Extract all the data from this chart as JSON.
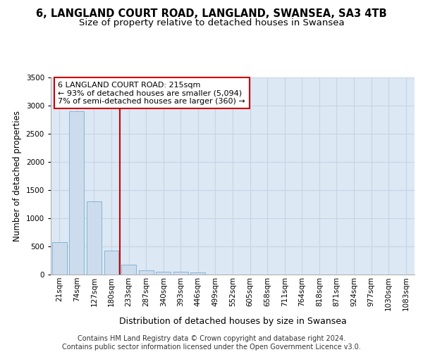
{
  "title1": "6, LANGLAND COURT ROAD, LANGLAND, SWANSEA, SA3 4TB",
  "title2": "Size of property relative to detached houses in Swansea",
  "xlabel": "Distribution of detached houses by size in Swansea",
  "ylabel": "Number of detached properties",
  "categories": [
    "21sqm",
    "74sqm",
    "127sqm",
    "180sqm",
    "233sqm",
    "287sqm",
    "340sqm",
    "393sqm",
    "446sqm",
    "499sqm",
    "552sqm",
    "605sqm",
    "658sqm",
    "711sqm",
    "764sqm",
    "818sqm",
    "871sqm",
    "924sqm",
    "977sqm",
    "1030sqm",
    "1083sqm"
  ],
  "values": [
    580,
    2900,
    1300,
    420,
    170,
    80,
    55,
    50,
    40,
    0,
    0,
    0,
    0,
    0,
    0,
    0,
    0,
    0,
    0,
    0,
    0
  ],
  "bar_color": "#cddcec",
  "bar_edge_color": "#7aadd4",
  "grid_color": "#c8d4e4",
  "background_color": "#dce8f4",
  "vline_x": 3.5,
  "vline_color": "#cc0000",
  "annotation_text": "6 LANGLAND COURT ROAD: 215sqm\n← 93% of detached houses are smaller (5,094)\n7% of semi-detached houses are larger (360) →",
  "annotation_box_color": "#ffffff",
  "annotation_border_color": "#cc0000",
  "ylim": [
    0,
    3500
  ],
  "yticks": [
    0,
    500,
    1000,
    1500,
    2000,
    2500,
    3000,
    3500
  ],
  "footer": "Contains HM Land Registry data © Crown copyright and database right 2024.\nContains public sector information licensed under the Open Government Licence v3.0.",
  "title1_fontsize": 10.5,
  "title2_fontsize": 9.5,
  "xlabel_fontsize": 9,
  "ylabel_fontsize": 8.5,
  "annotation_fontsize": 8,
  "tick_fontsize": 7.5,
  "footer_fontsize": 7
}
